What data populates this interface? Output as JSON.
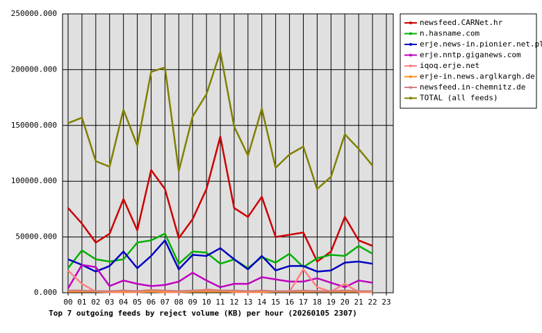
{
  "chart_data": {
    "type": "line",
    "title": "Top 7 outgoing feeds by reject volume (KB) per hour (20260105 2307)",
    "categories": [
      "00",
      "01",
      "02",
      "03",
      "04",
      "05",
      "06",
      "07",
      "08",
      "09",
      "10",
      "11",
      "12",
      "13",
      "14",
      "15",
      "16",
      "17",
      "18",
      "19",
      "20",
      "21",
      "22",
      "23"
    ],
    "ylim": [
      0,
      250000
    ],
    "yticks": [
      {
        "value": 0,
        "label": "0.000"
      },
      {
        "value": 50000,
        "label": "50000.000"
      },
      {
        "value": 100000,
        "label": "100000.000"
      },
      {
        "value": 150000,
        "label": "150000.000"
      },
      {
        "value": 200000,
        "label": "200000.000"
      },
      {
        "value": 250000,
        "label": "250000.000"
      }
    ],
    "grid": true,
    "background": "#e0e0e0",
    "legend": "right",
    "series": [
      {
        "name": "newsfeed.CARNet.hr",
        "color": "#cc0000",
        "values": [
          76000,
          62000,
          45000,
          53000,
          84000,
          56000,
          110000,
          93000,
          49000,
          66000,
          93000,
          140000,
          76000,
          68000,
          86000,
          50000,
          52000,
          54000,
          28000,
          37000,
          68000,
          47000,
          42000,
          null
        ]
      },
      {
        "name": "n.hasname.com",
        "color": "#00b000",
        "values": [
          22000,
          38000,
          30000,
          28000,
          30000,
          45000,
          47000,
          53000,
          26000,
          37000,
          36000,
          26000,
          30000,
          22000,
          32000,
          27000,
          35000,
          23000,
          31000,
          34000,
          33000,
          42000,
          35000,
          null
        ]
      },
      {
        "name": "erje.news-in.pionier.net.pl",
        "color": "#0000c0",
        "values": [
          30000,
          25000,
          19000,
          24000,
          37000,
          22000,
          33000,
          47000,
          21000,
          34000,
          33000,
          40000,
          30000,
          21000,
          33000,
          20000,
          24000,
          24000,
          19000,
          20000,
          27000,
          28000,
          26000,
          null
        ]
      },
      {
        "name": "erje.nntp.giganews.com",
        "color": "#c000c0",
        "values": [
          4000,
          25000,
          23000,
          6000,
          11000,
          8000,
          6000,
          7000,
          10000,
          18000,
          11000,
          5000,
          8000,
          8000,
          14000,
          12000,
          10000,
          10000,
          13000,
          9000,
          5000,
          11000,
          9000,
          null
        ]
      },
      {
        "name": "iqoq.erje.net",
        "color": "#ff8080",
        "values": [
          20000,
          8000,
          1000,
          500,
          500,
          500,
          1000,
          500,
          500,
          1000,
          3000,
          2000,
          500,
          500,
          500,
          1000,
          1000,
          21000,
          5000,
          1000,
          8000,
          500,
          500,
          null
        ]
      },
      {
        "name": "erje-in.news.arglkargh.de",
        "color": "#ff9020",
        "values": [
          1000,
          1000,
          1000,
          1000,
          1000,
          1000,
          1000,
          1000,
          1000,
          1000,
          1000,
          1000,
          1000,
          1000,
          1000,
          1000,
          1000,
          1000,
          1000,
          1000,
          1000,
          1000,
          1000,
          null
        ]
      },
      {
        "name": "newsfeed.in-chemnitz.de",
        "color": "#d08080",
        "values": [
          2000,
          2000,
          1500,
          1500,
          2000,
          1500,
          2500,
          2000,
          1500,
          2000,
          2500,
          2000,
          2000,
          1500,
          2000,
          1500,
          1500,
          2000,
          1500,
          1500,
          2000,
          1500,
          1500,
          null
        ]
      },
      {
        "name": "TOTAL (all feeds)",
        "color": "#808000",
        "values": [
          152000,
          157000,
          118000,
          113000,
          164000,
          132000,
          198000,
          202000,
          109000,
          158000,
          178000,
          216000,
          149000,
          123000,
          165000,
          112000,
          124000,
          131000,
          93000,
          104000,
          142000,
          129000,
          114000,
          null
        ]
      }
    ]
  }
}
